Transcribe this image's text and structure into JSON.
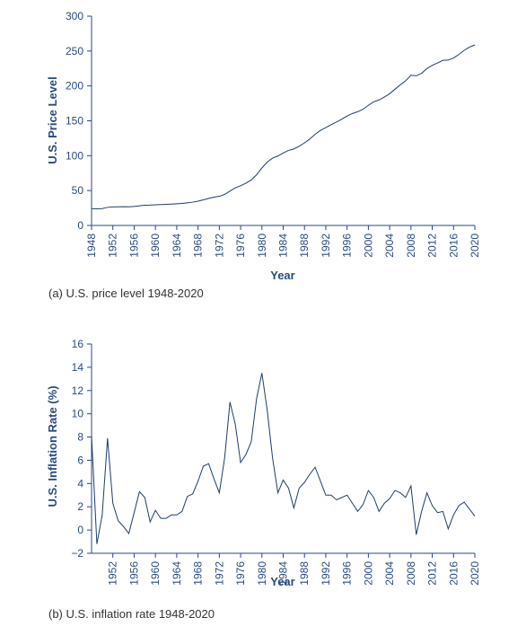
{
  "colors": {
    "line": "#1f3d6b",
    "axis_text": "#2a4a7f",
    "axis_line": "#2a4a7f"
  },
  "chart_data": [
    {
      "type": "line",
      "title": "",
      "caption": "(a) U.S. price level 1948-2020",
      "xlabel": "Year",
      "ylabel": "U.S. Price Level",
      "ylim": [
        0,
        300
      ],
      "yticks": [
        "0",
        "50",
        "100",
        "150",
        "200",
        "250",
        "300"
      ],
      "xtick_labels": [
        "1948",
        "1952",
        "1956",
        "1960",
        "1964",
        "1968",
        "1972",
        "1976",
        "1980",
        "1984",
        "1988",
        "1992",
        "1996",
        "2000",
        "2004",
        "2008",
        "2012",
        "2016",
        "2020"
      ],
      "grid": false,
      "series": [
        {
          "x": [
            1948,
            1949,
            1950,
            1951,
            1952,
            1953,
            1954,
            1955,
            1956,
            1957,
            1958,
            1959,
            1960,
            1961,
            1962,
            1963,
            1964,
            1965,
            1966,
            1967,
            1968,
            1969,
            1970,
            1971,
            1972,
            1973,
            1974,
            1975,
            1976,
            1977,
            1978,
            1979,
            1980,
            1981,
            1982,
            1983,
            1984,
            1985,
            1986,
            1987,
            1988,
            1989,
            1990,
            1991,
            1992,
            1993,
            1994,
            1995,
            1996,
            1997,
            1998,
            1999,
            2000,
            2001,
            2002,
            2003,
            2004,
            2005,
            2006,
            2007,
            2008,
            2009,
            2010,
            2011,
            2012,
            2013,
            2014,
            2015,
            2016,
            2017,
            2018,
            2019,
            2020
          ],
          "values": [
            24.1,
            23.8,
            24.1,
            26.0,
            26.5,
            26.7,
            26.9,
            26.8,
            27.2,
            28.1,
            28.9,
            29.1,
            29.6,
            29.9,
            30.2,
            30.6,
            31.0,
            31.5,
            32.4,
            33.4,
            34.8,
            36.7,
            38.8,
            40.5,
            41.8,
            44.4,
            49.3,
            53.8,
            56.9,
            60.6,
            65.2,
            72.6,
            82.4,
            90.9,
            96.5,
            99.6,
            103.9,
            107.6,
            109.6,
            113.6,
            118.3,
            124.0,
            130.7,
            136.2,
            140.3,
            144.5,
            148.2,
            152.4,
            156.9,
            160.5,
            163.0,
            166.6,
            172.2,
            177.1,
            179.9,
            184.0,
            188.9,
            195.3,
            201.6,
            207.3,
            215.3,
            214.5,
            218.1,
            224.9,
            229.6,
            233.0,
            236.7,
            237.0,
            240.0,
            245.1,
            251.1,
            255.7,
            258.8
          ]
        }
      ]
    },
    {
      "type": "line",
      "title": "",
      "caption": "(b) U.S. inflation rate 1948-2020",
      "xlabel": "Year",
      "ylabel": "U.S. Inflation Rate (%)",
      "ylim": [
        -2,
        16
      ],
      "yticks": [
        "−2",
        "0",
        "2",
        "4",
        "6",
        "8",
        "10",
        "12",
        "14",
        "16"
      ],
      "xtick_labels": [
        "1952",
        "1956",
        "1960",
        "1964",
        "1968",
        "1972",
        "1976",
        "1980",
        "1984",
        "1988",
        "1992",
        "1996",
        "2000",
        "2004",
        "2008",
        "2012",
        "2016",
        "2020"
      ],
      "grid": false,
      "series": [
        {
          "x": [
            1948,
            1949,
            1950,
            1951,
            1952,
            1953,
            1954,
            1955,
            1956,
            1957,
            1958,
            1959,
            1960,
            1961,
            1962,
            1963,
            1964,
            1965,
            1966,
            1967,
            1968,
            1969,
            1970,
            1971,
            1972,
            1973,
            1974,
            1975,
            1976,
            1977,
            1978,
            1979,
            1980,
            1981,
            1982,
            1983,
            1984,
            1985,
            1986,
            1987,
            1988,
            1989,
            1990,
            1991,
            1992,
            1993,
            1994,
            1995,
            1996,
            1997,
            1998,
            1999,
            2000,
            2001,
            2002,
            2003,
            2004,
            2005,
            2006,
            2007,
            2008,
            2009,
            2010,
            2011,
            2012,
            2013,
            2014,
            2015,
            2016,
            2017,
            2018,
            2019,
            2020
          ],
          "values": [
            8.1,
            -1.2,
            1.3,
            7.9,
            2.3,
            0.8,
            0.3,
            -0.3,
            1.5,
            3.3,
            2.8,
            0.7,
            1.7,
            1.0,
            1.0,
            1.3,
            1.3,
            1.6,
            2.9,
            3.1,
            4.2,
            5.5,
            5.7,
            4.4,
            3.2,
            6.2,
            11.0,
            9.1,
            5.8,
            6.5,
            7.6,
            11.3,
            13.5,
            10.3,
            6.2,
            3.2,
            4.3,
            3.6,
            1.9,
            3.6,
            4.1,
            4.8,
            5.4,
            4.2,
            3.0,
            3.0,
            2.6,
            2.8,
            3.0,
            2.3,
            1.6,
            2.2,
            3.4,
            2.8,
            1.6,
            2.3,
            2.7,
            3.4,
            3.2,
            2.8,
            3.8,
            -0.4,
            1.6,
            3.2,
            2.1,
            1.5,
            1.6,
            0.1,
            1.3,
            2.1,
            2.4,
            1.8,
            1.2
          ]
        }
      ]
    }
  ]
}
